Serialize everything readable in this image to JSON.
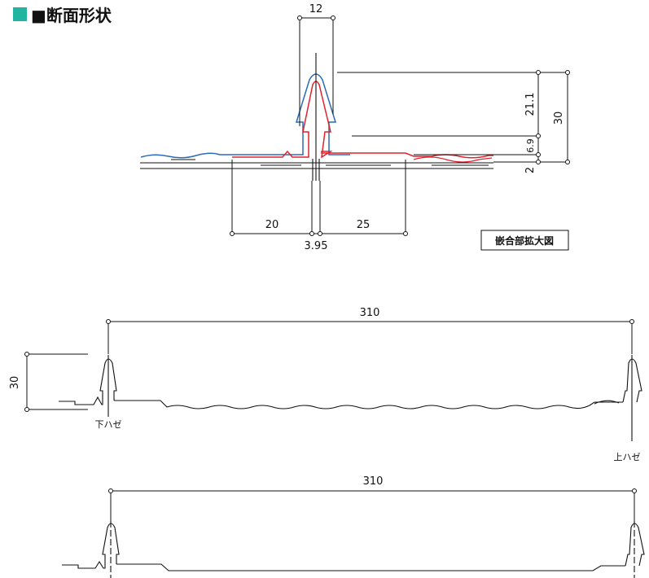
{
  "title": "■断面形状",
  "colors": {
    "accent": "#1fb5a0",
    "red_line": "#e0232e",
    "blue_line": "#2a6bb5",
    "line": "#111111"
  },
  "detail": {
    "dim_12": "12",
    "dim_21_1": "21.1",
    "dim_30": "30",
    "dim_6_9": "6.9",
    "dim_2": "2",
    "dim_20": "20",
    "dim_25": "25",
    "dim_3_95": "3.95",
    "caption": "嵌合部拡大図"
  },
  "profile1": {
    "width": "310",
    "height": "30",
    "lower_seam": "下ハゼ",
    "upper_seam": "上ハゼ"
  },
  "profile2": {
    "width": "310"
  }
}
